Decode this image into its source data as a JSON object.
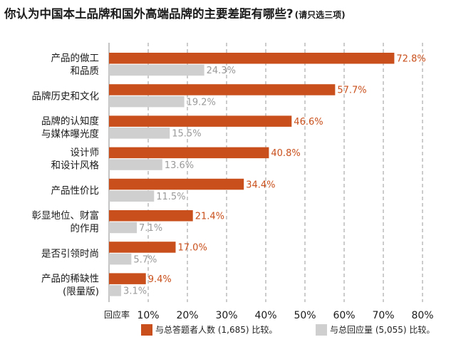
{
  "title": "你认为中国本土品牌和国外高端品牌的主要差距有哪些?",
  "subtitle": "(请只选三项)",
  "chart_data": {
    "type": "bar",
    "orientation": "horizontal",
    "categories": [
      [
        "产品的做工",
        "和品质"
      ],
      [
        "品牌历史和文化"
      ],
      [
        "品牌的认知度",
        "与媒体曝光度"
      ],
      [
        "设计师",
        "和设计风格"
      ],
      [
        "产品性价比"
      ],
      [
        "彰显地位、财富",
        "的作用"
      ],
      [
        "是否引领时尚"
      ],
      [
        "产品的稀缺性",
        "(限量版)"
      ]
    ],
    "series": [
      {
        "name": "与总答题者人数 (1,685) 比较。",
        "color": "#c9501c",
        "values": [
          72.8,
          57.7,
          46.6,
          40.8,
          34.4,
          21.4,
          17.0,
          9.4
        ]
      },
      {
        "name": "与总回应量 (5,055) 比较。",
        "color": "#cfcfcf",
        "values": [
          24.3,
          19.2,
          15.5,
          13.6,
          11.5,
          7.1,
          5.7,
          3.1
        ]
      }
    ],
    "xlabel": "回应率",
    "xlim": [
      0,
      80
    ],
    "xticks": [
      10,
      20,
      30,
      40,
      50,
      60,
      70,
      80
    ],
    "tick_suffix": "%",
    "grid": "vertical-dashed",
    "legend_position": "bottom"
  },
  "colors": {
    "orange": "#c9501c",
    "gray_bar": "#cfcfcf",
    "gray_label": "#9a9a9a",
    "grid": "#999999"
  }
}
